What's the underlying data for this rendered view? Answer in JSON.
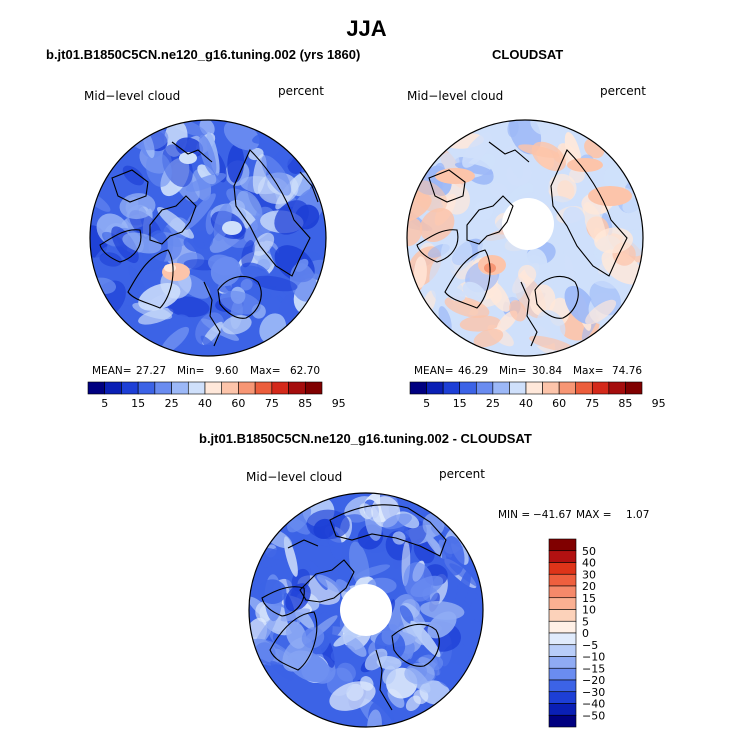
{
  "page": {
    "title": "JJA"
  },
  "panels": {
    "model": {
      "title": "b.jt01.B1850C5CN.ne120_g16.tuning.002 (yrs 1860)",
      "variable": "Mid−level cloud",
      "units": "percent",
      "mean_label": "MEAN=",
      "mean_value": "27.27",
      "min_label": "Min=",
      "min_value": "9.60",
      "max_label": "Max=",
      "max_value": "62.70"
    },
    "obs": {
      "title": "CLOUDSAT",
      "variable": "Mid−level cloud",
      "units": "percent",
      "mean_label": "MEAN=",
      "mean_value": "46.29",
      "min_label": "Min=",
      "min_value": "30.84",
      "max_label": "Max=",
      "max_value": "74.76"
    },
    "diff": {
      "title": "b.jt01.B1850C5CN.ne120_g16.tuning.002 - CLOUDSAT",
      "variable": "Mid−level cloud",
      "units": "percent",
      "min_label": "MIN =",
      "min_value": "−41.67",
      "max_label": "MAX =",
      "max_value": "1.07"
    }
  },
  "colors": {
    "abs_palette": [
      "#000080",
      "#0a1fb5",
      "#1d3fd6",
      "#3c63e6",
      "#6a8cf0",
      "#9cb8f7",
      "#cfe0fb",
      "#ffe8da",
      "#fcc4aa",
      "#f79674",
      "#ec5e3c",
      "#d4291a",
      "#a50d0d",
      "#800000"
    ],
    "diff_palette": [
      "#000080",
      "#0a1fb5",
      "#1d3fd6",
      "#3c63e6",
      "#6a8cf0",
      "#8fabf4",
      "#b8cdf9",
      "#e0ebfc",
      "#fff0e6",
      "#fcd2ba",
      "#fab092",
      "#f5896a",
      "#ee5f3e",
      "#de3419",
      "#b21111",
      "#800000"
    ],
    "model_base": "#3c63e6",
    "obs_base": "#cfe0fb",
    "diff_base": "#3c63e6"
  },
  "chart_data": [
    {
      "type": "heatmap",
      "projection": "north-polar-stereographic",
      "title": "b.jt01.B1850C5CN.ne120_g16.tuning.002 (yrs 1860)",
      "field": "Mid-level cloud",
      "units": "percent",
      "season": "JJA",
      "mean": 27.27,
      "min": 9.6,
      "max": 62.7,
      "colorbar_levels": [
        5,
        10,
        15,
        20,
        25,
        30,
        40,
        50,
        60,
        70,
        75,
        80,
        85,
        90,
        95
      ],
      "colorbar_tick_labels": [
        "5",
        "15",
        "25",
        "40",
        "60",
        "75",
        "85",
        "95"
      ]
    },
    {
      "type": "heatmap",
      "projection": "north-polar-stereographic",
      "title": "CLOUDSAT",
      "field": "Mid-level cloud",
      "units": "percent",
      "season": "JJA",
      "mean": 46.29,
      "min": 30.84,
      "max": 74.76,
      "colorbar_levels": [
        5,
        10,
        15,
        20,
        25,
        30,
        40,
        50,
        60,
        70,
        75,
        80,
        85,
        90,
        95
      ],
      "colorbar_tick_labels": [
        "5",
        "15",
        "25",
        "40",
        "60",
        "75",
        "85",
        "95"
      ]
    },
    {
      "type": "heatmap",
      "projection": "north-polar-stereographic",
      "title": "b.jt01.B1850C5CN.ne120_g16.tuning.002 - CLOUDSAT",
      "field": "Mid-level cloud",
      "units": "percent",
      "season": "JJA",
      "min": -41.67,
      "max": 1.07,
      "colorbar_levels": [
        -50,
        -40,
        -30,
        -20,
        -15,
        -10,
        -5,
        0,
        5,
        10,
        15,
        20,
        30,
        40,
        50
      ],
      "colorbar_tick_labels": [
        "−50",
        "−40",
        "−30",
        "−20",
        "−15",
        "−10",
        "−5",
        "0",
        "5",
        "10",
        "15",
        "20",
        "30",
        "40",
        "50"
      ]
    }
  ]
}
